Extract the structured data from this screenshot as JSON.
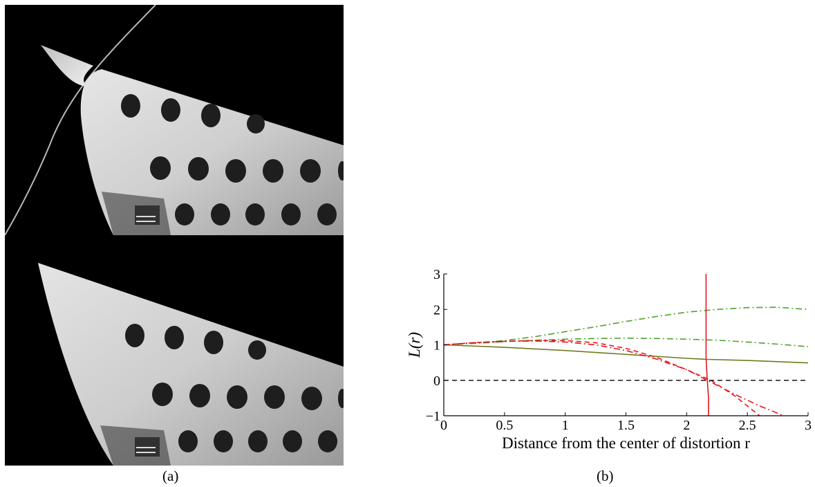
{
  "panels": {
    "a": {
      "caption": "(a)",
      "images": [
        {
          "description_name": "undistorted-calibration-board-top"
        },
        {
          "description_name": "undistorted-calibration-board-bottom"
        }
      ]
    },
    "b": {
      "caption": "(b)"
    }
  },
  "colors": {
    "green": "#4aa32b",
    "red": "#e8141c",
    "olive": "#6f7a1e",
    "reference": "#000000"
  },
  "chart_data": {
    "type": "line",
    "title": "",
    "xlabel": "Distance from the center of distortion r",
    "ylabel": "L(r)",
    "xlim": [
      0,
      3
    ],
    "ylim": [
      -1,
      3
    ],
    "xticks": [
      "0",
      "0.5",
      "1",
      "1.5",
      "2",
      "2.5",
      "3"
    ],
    "yticks": [
      "−1",
      "0",
      "1",
      "2",
      "3"
    ],
    "grid": false,
    "legend": "none",
    "series": [
      {
        "color": "green",
        "dash": "dashdot",
        "x": [
          0,
          0.25,
          0.5,
          0.75,
          1.0,
          1.25,
          1.5,
          1.75,
          2.0,
          2.25,
          2.5,
          2.75,
          3.0
        ],
        "y": [
          1.0,
          1.05,
          1.12,
          1.23,
          1.37,
          1.51,
          1.66,
          1.8,
          1.92,
          2.0,
          2.05,
          2.06,
          2.0
        ]
      },
      {
        "color": "green",
        "dash": "dashdot",
        "x": [
          0,
          0.25,
          0.5,
          0.75,
          1.0,
          1.25,
          1.5,
          1.75,
          2.0,
          2.25,
          2.5,
          2.75,
          3.0
        ],
        "y": [
          1.0,
          1.04,
          1.09,
          1.13,
          1.16,
          1.18,
          1.19,
          1.18,
          1.16,
          1.13,
          1.08,
          1.02,
          0.95
        ]
      },
      {
        "color": "olive",
        "dash": "solid",
        "x": [
          0,
          0.5,
          1.0,
          1.5,
          2.0,
          2.17,
          2.5,
          3.0
        ],
        "y": [
          1.0,
          0.93,
          0.84,
          0.73,
          0.62,
          0.59,
          0.56,
          0.49
        ]
      },
      {
        "color": "red",
        "dash": "dashed",
        "x": [
          0,
          0.25,
          0.5,
          0.75,
          1.0,
          1.25,
          1.5,
          1.75,
          2.0,
          2.2,
          2.4,
          2.6
        ],
        "y": [
          1.0,
          1.06,
          1.1,
          1.12,
          1.12,
          1.06,
          0.9,
          0.65,
          0.3,
          0.0,
          -0.45,
          -1.0
        ]
      },
      {
        "color": "red",
        "dash": "dashdot",
        "x": [
          0,
          0.25,
          0.5,
          0.75,
          1.0,
          1.25,
          1.5,
          1.75,
          2.0,
          2.17,
          2.4,
          2.6,
          2.8
        ],
        "y": [
          1.0,
          1.06,
          1.1,
          1.11,
          1.08,
          1.0,
          0.84,
          0.6,
          0.3,
          0.0,
          -0.4,
          -0.72,
          -1.0
        ]
      },
      {
        "color": "red",
        "dash": "solid",
        "x": [
          2.16,
          2.16,
          2.17,
          2.18,
          2.18
        ],
        "y": [
          3.0,
          0.62,
          0.0,
          -0.5,
          -1.0
        ]
      },
      {
        "color": "reference",
        "dash": "dashed",
        "x": [
          0,
          3
        ],
        "y": [
          0,
          0
        ]
      }
    ]
  }
}
